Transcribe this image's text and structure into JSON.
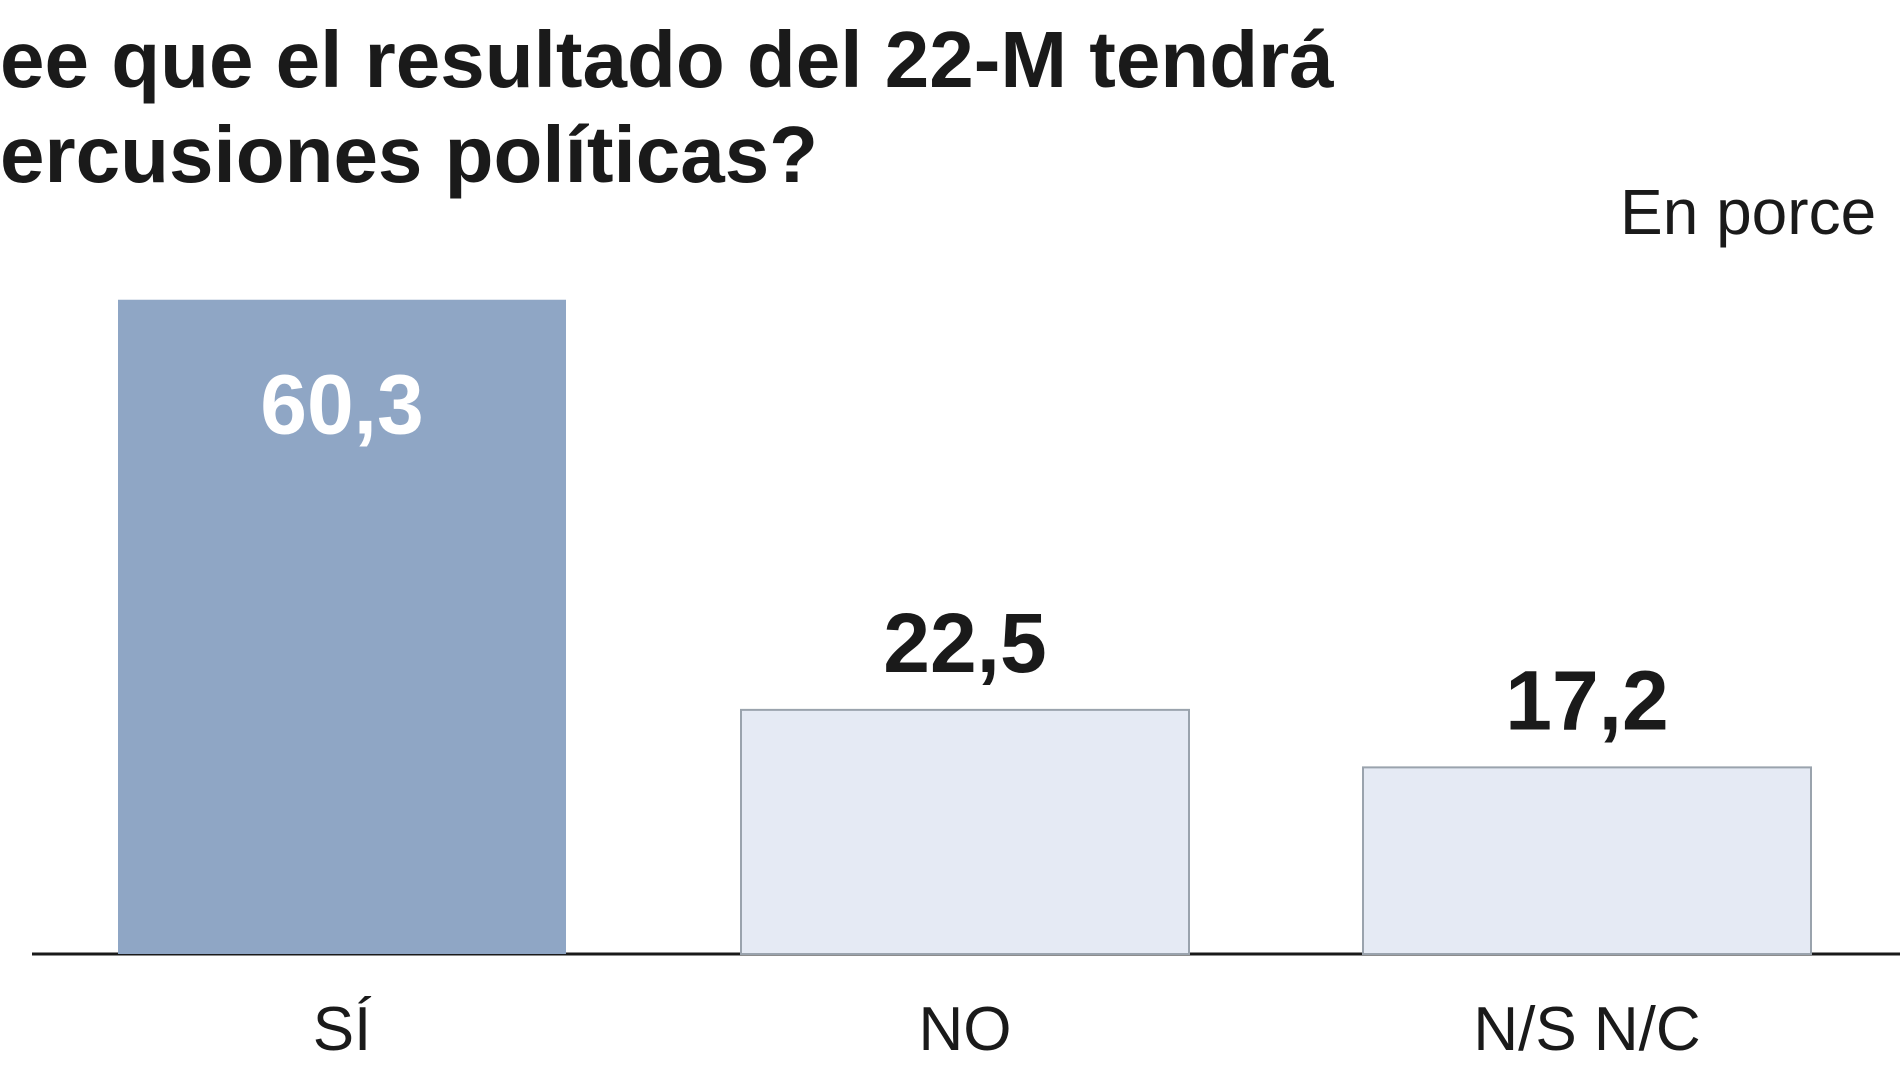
{
  "chart_data": {
    "type": "bar",
    "title_lines": [
      "ee que el resultado del 22-M tendrá",
      "ercusiones políticas?"
    ],
    "subtitle": "En porce",
    "categories": [
      "SÍ",
      "NO",
      "N/S N/C"
    ],
    "values": [
      60.3,
      22.5,
      17.2
    ],
    "value_labels": [
      "60,3",
      "22,5",
      "17,2"
    ],
    "colors": [
      "#8fa6c5",
      "#e5eaf4",
      "#e5eaf4"
    ]
  }
}
